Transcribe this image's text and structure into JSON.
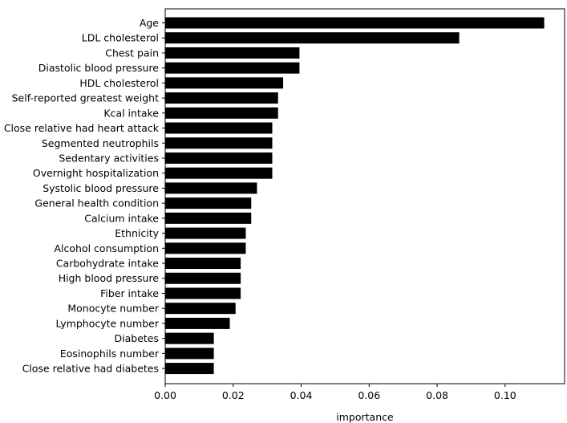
{
  "chart_data": {
    "type": "bar",
    "orientation": "horizontal",
    "title": "",
    "xlabel": "importance",
    "ylabel": "",
    "xlim": [
      0,
      0.1175
    ],
    "xticks": [
      0.0,
      0.02,
      0.04,
      0.06,
      0.08,
      0.1
    ],
    "xtick_labels": [
      "0.00",
      "0.02",
      "0.04",
      "0.06",
      "0.08",
      "0.10"
    ],
    "grid": false,
    "bar_color": "#000000",
    "categories": [
      "Age",
      "LDL cholesterol",
      "Chest pain",
      "Diastolic blood pressure",
      "HDL cholesterol",
      "Self-reported greatest weight",
      "Kcal intake",
      "Close relative had heart attack",
      "Segmented neutrophils",
      "Sedentary activities",
      "Overnight hospitalization",
      "Systolic blood pressure",
      "General health condition",
      "Calcium intake",
      "Ethnicity",
      "Alcohol consumption",
      "Carbohydrate intake",
      "High blood pressure",
      "Fiber intake",
      "Monocyte number",
      "Lymphocyte number",
      "Diabetes",
      "Eosinophils number",
      "Close relative had diabetes"
    ],
    "values": [
      0.1115,
      0.0865,
      0.0395,
      0.0395,
      0.0347,
      0.0332,
      0.0332,
      0.0315,
      0.0315,
      0.0315,
      0.0315,
      0.027,
      0.0253,
      0.0253,
      0.0237,
      0.0237,
      0.0222,
      0.0222,
      0.0222,
      0.0207,
      0.019,
      0.0143,
      0.0143,
      0.0143
    ]
  }
}
